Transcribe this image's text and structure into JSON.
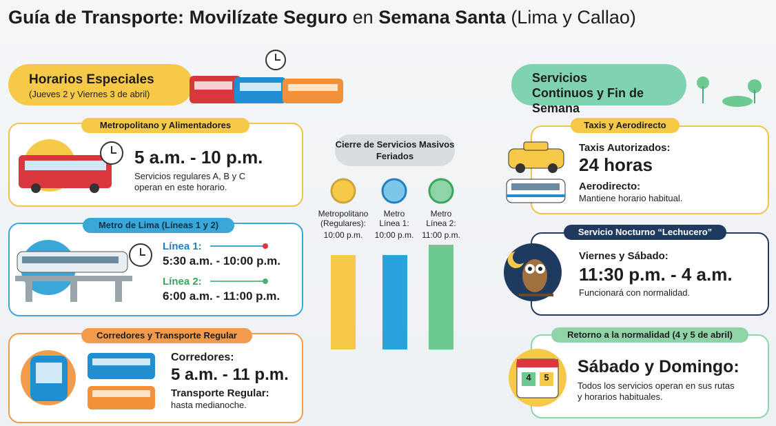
{
  "title": {
    "parts": [
      "Guía de Transporte:",
      "Movilízate Seguro",
      "en",
      "Semana Santa",
      "(Lima y Callao)"
    ]
  },
  "left": {
    "header": {
      "title": "Horarios Especiales",
      "subtitle": "(Jueves 2 y Viernes 3 de abril)"
    },
    "cards": [
      {
        "label": "Metropolitano y Alimentadores",
        "time": "5 a.m. - 10 p.m.",
        "note": "Servicios regulares A, B y C operan en este horario."
      },
      {
        "label": "Metro de Lima (Líneas 1 y 2)",
        "lines": [
          {
            "name": "Línea 1:",
            "time": "5:30 a.m. - 10:00 p.m."
          },
          {
            "name": "Línea 2:",
            "time": "6:00 a.m. - 11:00 p.m."
          }
        ]
      },
      {
        "label": "Corredores y Transporte Regular",
        "heading": "Corredores:",
        "time": "5 a.m. - 11 p.m.",
        "subheading": "Transporte Regular:",
        "note": "hasta medianoche."
      }
    ]
  },
  "center": {
    "title": "Cierre de Servicios Masivos Feriados",
    "items": [
      {
        "label": "Metropolitano (Regulares):",
        "time": "10:00 p.m."
      },
      {
        "label": "Metro Línea 1:",
        "time": "10:00 p.m."
      },
      {
        "label": "Metro Línea 2:",
        "time": "11:00 p.m."
      }
    ]
  },
  "right": {
    "header": {
      "title": "Servicios Continuos y Fin de Semana"
    },
    "cards": [
      {
        "label": "Taxis y Aerodirecto",
        "heading": "Taxis Autorizados:",
        "time": "24 horas",
        "subheading": "Aerodirecto:",
        "note": "Mantiene horario habitual."
      },
      {
        "label": "Servicio Nocturno “Lechucero”",
        "heading": "Viernes y Sábado:",
        "time": "11:30 p.m. - 4 a.m.",
        "note": "Funcionará con normalidad."
      },
      {
        "label": "Retorno a la normalidad (4 y 5 de abril)",
        "heading": "Sábado y Domingo:",
        "note": "Todos los servicios operan en sus rutas y horarios habituales.",
        "calendar": [
          "4",
          "5"
        ]
      }
    ]
  }
}
